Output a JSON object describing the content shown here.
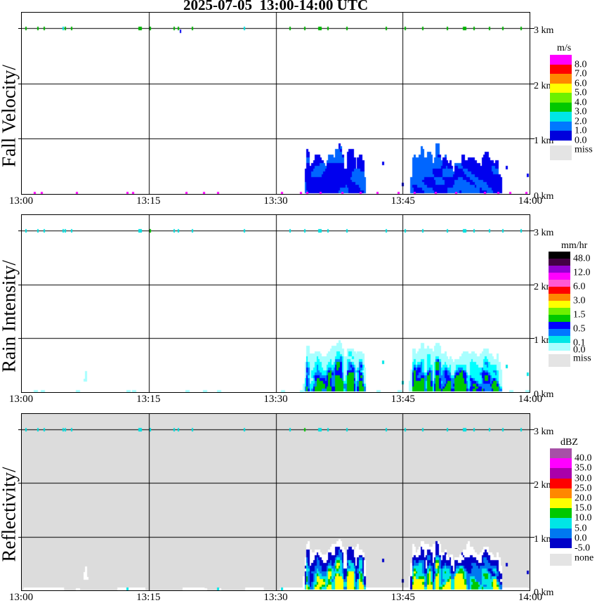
{
  "chart_data": {
    "type": "heatmap",
    "title": "2025-07-05  13:00-14:00 UTC",
    "time_axis": {
      "start_min": 0,
      "end_min": 60,
      "tick_labels": [
        "13:00",
        "13:15",
        "13:30",
        "13:45",
        "14:00"
      ],
      "tick_minutes": [
        0,
        15,
        30,
        45,
        60
      ]
    },
    "height_axis": {
      "labels": [
        "3 km",
        "2 km",
        "1 km",
        "0 km"
      ],
      "values_km": [
        3,
        2,
        1,
        0
      ],
      "top_km": 3.29
    },
    "quality_ticks": {
      "minutes": [
        0.4,
        1.8,
        2.6,
        4.8,
        5.1,
        5.8,
        13.8,
        15.1,
        17.9,
        18.4,
        20.1,
        26.2,
        31.6,
        33.4,
        35.0,
        36.1,
        38.3,
        43.0,
        45.2,
        47.3,
        50.2,
        52.1,
        53.4,
        55.2,
        56.8,
        58.9
      ],
      "wide_minutes": [
        13.8,
        35.0,
        52.1
      ],
      "panel_default_colors": [
        "#00B400",
        "#00E0E0",
        "#00E0E0"
      ],
      "overrides": [
        {
          "panel": 0,
          "m": 4.8,
          "c": "#00E0E0"
        },
        {
          "panel": 0,
          "m": 26.2,
          "c": "#00E0E0"
        },
        {
          "panel": 1,
          "m": 15.1,
          "c": "#00C800"
        },
        {
          "panel": 2,
          "m": 33.4,
          "c": "#00C800"
        }
      ],
      "below_line_ticks": [
        {
          "panel": 0,
          "m": 18.7,
          "c": "#0000F0"
        }
      ]
    },
    "cells": [
      {
        "t0": 7.15,
        "t1": 7.8,
        "base": 0.18,
        "top_min": 0.4,
        "top_max": 0.68,
        "density": 0.62,
        "seed": 11
      },
      {
        "t0": 33.3,
        "t1": 40.7,
        "base": 0,
        "top_min": 0.5,
        "top_max": 1.03,
        "density": 1,
        "seed": 21
      },
      {
        "t0": 45.8,
        "t1": 56.8,
        "base": 0,
        "top_min": 0.45,
        "top_max": 0.98,
        "density": 1,
        "seed": 33
      }
    ],
    "surface_specks_min": [
      1.4,
      2.2,
      6.4,
      12.4,
      13.0,
      19.3,
      21.4,
      23.1,
      30.6,
      32.9,
      41.9,
      44.4,
      57.6,
      59.5
    ],
    "cell_bottom_specks_min": [
      33.6,
      35.2,
      37.8,
      39.9,
      46.3,
      48.8,
      51.2,
      54.6,
      56.2
    ],
    "isolated_dots": [
      {
        "t": 42.6,
        "z": 0.52
      },
      {
        "t": 57.2,
        "z": 0.45
      },
      {
        "t": 59.7,
        "z": 0.3
      },
      {
        "t": 44.9,
        "z": 0.14
      }
    ],
    "reflectivity_bottom_white_min": [
      [
        0.2,
        5.0
      ],
      [
        11.3,
        14.6
      ],
      [
        19.0,
        21.6
      ],
      [
        26.4,
        28.6
      ],
      [
        30.5,
        59.8
      ]
    ],
    "panels": [
      {
        "id": "fall-velocity",
        "ylabel": "Fall Velocity/",
        "unit": "m/s",
        "plot_bg": "#FFFFFF",
        "legend": {
          "title": "m/s",
          "boxes": [
            {
              "color": "#FF00FF",
              "label": "8.0"
            },
            {
              "color": "#FF0000",
              "label": "7.0"
            },
            {
              "color": "#FF8700",
              "label": "6.0"
            },
            {
              "color": "#FFFF00",
              "label": "5.0"
            },
            {
              "color": "#6EF000",
              "label": "4.0"
            },
            {
              "color": "#00C800",
              "label": "3.0"
            },
            {
              "color": "#00E6E6",
              "label": "2.0"
            },
            {
              "color": "#0078FF",
              "label": "1.0"
            },
            {
              "color": "#0000DC",
              "label": "0.0"
            }
          ],
          "miss": {
            "color": "#E4E4E4",
            "label": "miss"
          }
        },
        "palette": {
          "type": "velocity",
          "skip": 0.3,
          "lo": "#0066FF",
          "hi": "#0000EE",
          "speck": "#00E0E0",
          "surface": "#FF00FF"
        }
      },
      {
        "id": "rain-intensity",
        "ylabel": "Rain Intensity/",
        "unit": "mm/hr",
        "plot_bg": "#FFFFFF",
        "legend": {
          "title": "mm/hr",
          "boxes": [
            {
              "color": "#000000",
              "label": "48.0"
            },
            {
              "color": "#440044",
              "label": ""
            },
            {
              "color": "#9400D3",
              "label": "12.0"
            },
            {
              "color": "#FF00FF",
              "label": ""
            },
            {
              "color": "#FF5AD2",
              "label": "6.0"
            },
            {
              "color": "#FF0000",
              "label": ""
            },
            {
              "color": "#FF8700",
              "label": "3.0"
            },
            {
              "color": "#FFFF00",
              "label": ""
            },
            {
              "color": "#6EF000",
              "label": "1.5"
            },
            {
              "color": "#00C800",
              "label": ""
            },
            {
              "color": "#0000FF",
              "label": "0.5"
            },
            {
              "color": "#0078FF",
              "label": ""
            },
            {
              "color": "#00E6E6",
              "label": "0.1"
            },
            {
              "color": "#A8FFFF",
              "label": "0.0"
            }
          ],
          "miss": {
            "color": "#E4E4E4",
            "label": "miss"
          }
        },
        "palette": {
          "type": "stops",
          "stops": [
            [
              0.18,
              ""
            ],
            [
              0.45,
              "#A8FFFF"
            ],
            [
              0.6,
              "#00FFFF"
            ],
            [
              0.74,
              "#0080FF"
            ],
            [
              0.88,
              "#0000FF"
            ],
            [
              9,
              "#00C800"
            ]
          ],
          "surface": "#A8FFFF"
        }
      },
      {
        "id": "reflectivity",
        "ylabel": "Reflectivity/",
        "unit": "dBZ",
        "plot_bg": "#DCDCDC",
        "legend": {
          "title": "dBZ",
          "boxes": [
            {
              "color": "#A750A7",
              "label": "40.0"
            },
            {
              "color": "#FF00FF",
              "label": "35.0"
            },
            {
              "color": "#AA00AA",
              "label": "30.0"
            },
            {
              "color": "#FF0000",
              "label": "25.0"
            },
            {
              "color": "#FF8700",
              "label": "20.0"
            },
            {
              "color": "#FFFF00",
              "label": "15.0"
            },
            {
              "color": "#00C800",
              "label": "10.0"
            },
            {
              "color": "#00E6E6",
              "label": "5.0"
            },
            {
              "color": "#0078F0",
              "label": "0.0"
            },
            {
              "color": "#0000C8",
              "label": "-5.0"
            }
          ],
          "miss": {
            "color": "#E4E4E4",
            "label": "none"
          }
        },
        "palette": {
          "type": "stops",
          "stops": [
            [
              0.12,
              ""
            ],
            [
              0.34,
              "#FFFFFF"
            ],
            [
              0.52,
              "#0000C8"
            ],
            [
              0.66,
              "#0078F0"
            ],
            [
              0.84,
              "#00E6E6"
            ],
            [
              0.93,
              "#00C800"
            ],
            [
              9,
              "#FFFF00"
            ]
          ],
          "surface": "#FFFFFF"
        }
      }
    ]
  }
}
